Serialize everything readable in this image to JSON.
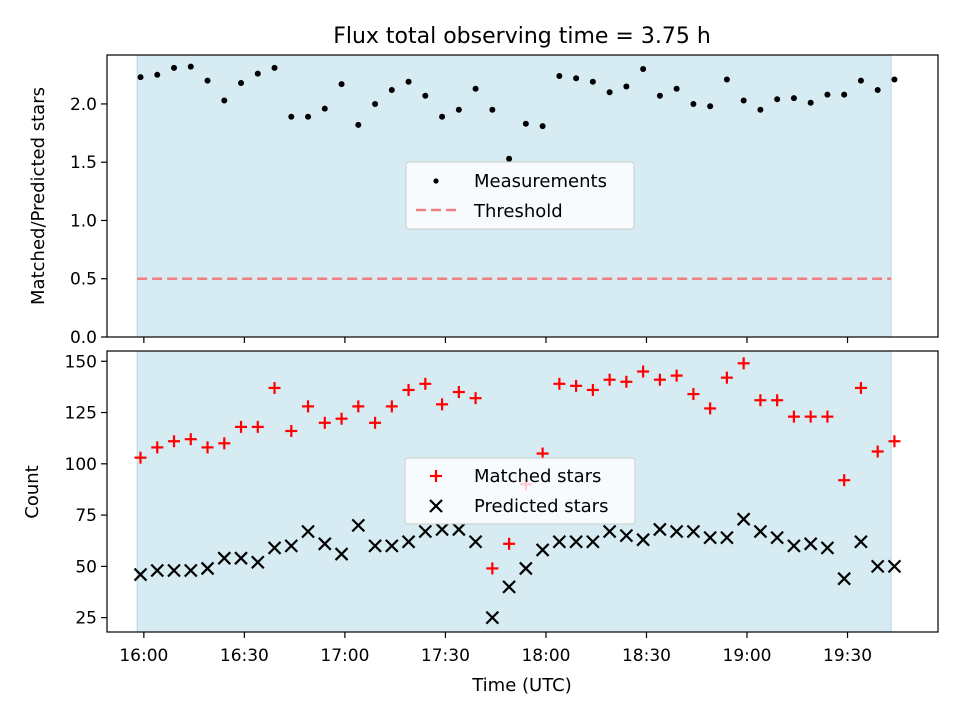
{
  "chart_data": [
    {
      "type": "scatter",
      "title": "Flux total observing time = 3.75 h",
      "ylabel": "Matched/Predicted stars",
      "xlabel": "",
      "ylim": [
        0,
        2.42
      ],
      "yticks": [
        "0.0",
        "0.5",
        "1.0",
        "1.5",
        "2.0"
      ],
      "ytick_values": [
        0,
        0.5,
        1.0,
        1.5,
        2.0
      ],
      "xlim_minutes_from_1600": [
        -11,
        237
      ],
      "xtick_minutes_from_1600": [
        0,
        30,
        60,
        90,
        120,
        150,
        180,
        210
      ],
      "observing_span": [
        "15:58",
        "19:43"
      ],
      "legend_position": "center",
      "series": [
        {
          "name": "Measurements",
          "marker": "dot",
          "color": "#000000",
          "x": [
            "15:59",
            "16:04",
            "16:09",
            "16:14",
            "16:19",
            "16:24",
            "16:29",
            "16:34",
            "16:39",
            "16:44",
            "16:49",
            "16:54",
            "16:59",
            "17:04",
            "17:09",
            "17:14",
            "17:19",
            "17:24",
            "17:29",
            "17:34",
            "17:39",
            "17:44",
            "17:49",
            "17:54",
            "17:59",
            "18:04",
            "18:09",
            "18:14",
            "18:19",
            "18:24",
            "18:29",
            "18:34",
            "18:39",
            "18:44",
            "18:49",
            "18:54",
            "18:59",
            "19:04",
            "19:09",
            "19:14",
            "19:19",
            "19:24",
            "19:29",
            "19:34",
            "19:39",
            "19:44"
          ],
          "values": [
            2.23,
            2.25,
            2.31,
            2.32,
            2.2,
            2.03,
            2.18,
            2.26,
            2.31,
            1.89,
            1.89,
            1.96,
            2.17,
            1.82,
            2.0,
            2.12,
            2.19,
            2.07,
            1.89,
            1.95,
            2.13,
            1.95,
            1.53,
            1.83,
            1.81,
            2.24,
            2.22,
            2.19,
            2.1,
            2.15,
            2.3,
            2.07,
            2.13,
            2.0,
            1.98,
            2.21,
            2.03,
            1.95,
            2.04,
            2.05,
            2.01,
            2.08,
            2.08,
            2.2,
            2.12,
            2.21
          ]
        },
        {
          "name": "Threshold",
          "style": "dashed",
          "color": "#f08080",
          "value": 0.5
        }
      ]
    },
    {
      "type": "scatter",
      "title": "",
      "ylabel": "Count",
      "xlabel": "Time (UTC)",
      "ylim": [
        18,
        155
      ],
      "yticks": [
        "25",
        "50",
        "75",
        "100",
        "125",
        "150"
      ],
      "ytick_values": [
        25,
        50,
        75,
        100,
        125,
        150
      ],
      "xticks": [
        "16:00",
        "16:30",
        "17:00",
        "17:30",
        "18:00",
        "18:30",
        "19:00",
        "19:30"
      ],
      "legend_position": "center",
      "series": [
        {
          "name": "Matched stars",
          "marker": "plus",
          "color": "#ff0000",
          "x": [
            "15:59",
            "16:04",
            "16:09",
            "16:14",
            "16:19",
            "16:24",
            "16:29",
            "16:34",
            "16:39",
            "16:44",
            "16:49",
            "16:54",
            "16:59",
            "17:04",
            "17:09",
            "17:14",
            "17:19",
            "17:24",
            "17:29",
            "17:34",
            "17:39",
            "17:44",
            "17:49",
            "17:54",
            "17:59",
            "18:04",
            "18:09",
            "18:14",
            "18:19",
            "18:24",
            "18:29",
            "18:34",
            "18:39",
            "18:44",
            "18:49",
            "18:54",
            "18:59",
            "19:04",
            "19:09",
            "19:14",
            "19:19",
            "19:24",
            "19:29",
            "19:34",
            "19:39",
            "19:44"
          ],
          "values": [
            103,
            108,
            111,
            112,
            108,
            110,
            118,
            118,
            137,
            116,
            128,
            120,
            122,
            128,
            120,
            128,
            136,
            139,
            129,
            135,
            132,
            49,
            61,
            90,
            105,
            139,
            138,
            136,
            141,
            140,
            145,
            141,
            143,
            134,
            127,
            142,
            149,
            131,
            131,
            123,
            123,
            123,
            92,
            137,
            106,
            111
          ]
        },
        {
          "name": "Predicted stars",
          "marker": "x",
          "color": "#000000",
          "x": [
            "15:59",
            "16:04",
            "16:09",
            "16:14",
            "16:19",
            "16:24",
            "16:29",
            "16:34",
            "16:39",
            "16:44",
            "16:49",
            "16:54",
            "16:59",
            "17:04",
            "17:09",
            "17:14",
            "17:19",
            "17:24",
            "17:29",
            "17:34",
            "17:39",
            "17:44",
            "17:49",
            "17:54",
            "17:59",
            "18:04",
            "18:09",
            "18:14",
            "18:19",
            "18:24",
            "18:29",
            "18:34",
            "18:39",
            "18:44",
            "18:49",
            "18:54",
            "18:59",
            "19:04",
            "19:09",
            "19:14",
            "19:19",
            "19:24",
            "19:29",
            "19:34",
            "19:39",
            "19:44"
          ],
          "values": [
            46,
            48,
            48,
            48,
            49,
            54,
            54,
            52,
            59,
            60,
            67,
            61,
            56,
            70,
            60,
            60,
            62,
            67,
            68,
            68,
            62,
            25,
            40,
            49,
            58,
            62,
            62,
            62,
            67,
            65,
            63,
            68,
            67,
            67,
            64,
            64,
            73,
            67,
            64,
            60,
            61,
            59,
            44,
            62,
            50,
            50
          ]
        }
      ]
    }
  ],
  "colors": {
    "observing_band": "#add8e6",
    "threshold": "#f08080",
    "matched": "#ff0000",
    "predicted": "#000000",
    "measurements": "#000000"
  }
}
